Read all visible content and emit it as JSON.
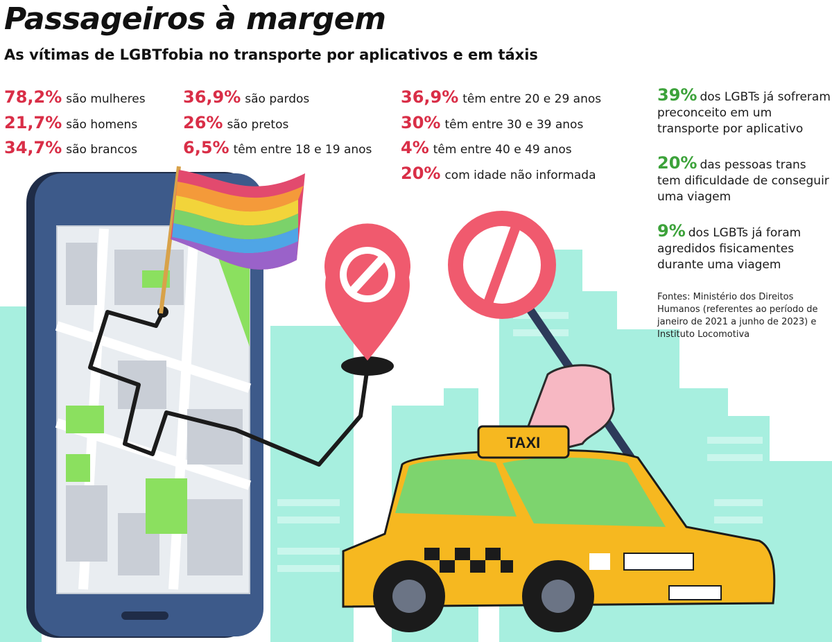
{
  "header": {
    "title": "Passageiros à margem",
    "subtitle": "As vítimas de LGBTfobia no transporte por aplicativos e em táxis"
  },
  "stats": {
    "col1": [
      {
        "pct": "78,2%",
        "text": "são mulheres"
      },
      {
        "pct": "21,7%",
        "text": "são homens"
      },
      {
        "pct": "34,7%",
        "text": "são brancos"
      }
    ],
    "col2": [
      {
        "pct": "36,9%",
        "text": "são pardos"
      },
      {
        "pct": "26%",
        "text": "são pretos"
      },
      {
        "pct": "6,5%",
        "text": "têm entre 18 e 19 anos"
      }
    ],
    "col3": [
      {
        "pct": "36,9%",
        "text": "têm entre 20 e 29 anos"
      },
      {
        "pct": "30%",
        "text": "têm entre 30 e 39 anos"
      },
      {
        "pct": "4%",
        "text": "têm entre 40 e 49 anos"
      },
      {
        "pct": "20%",
        "text": "com idade não informada"
      }
    ]
  },
  "highlights": [
    {
      "pct": "39%",
      "text": "dos LGBTs já sofreram preconceito em um transporte por aplicativo"
    },
    {
      "pct": "20%",
      "text": "das pessoas trans tem dificuldade de conseguir uma viagem"
    },
    {
      "pct": "9%",
      "text": "dos LGBTs já foram agredidos fisicamentes durante uma viagem"
    }
  ],
  "source": "Fontes: Ministério dos Direitos Humanos (referentes ao período de janeiro de 2021 a junho de 2023) e Instituto Locomotiva",
  "taxi_sign": "TAXI",
  "icons": [
    "smartphone-map-icon",
    "rainbow-flag-icon",
    "prohibited-pin-icon",
    "prohibited-sign-icon",
    "taxi-icon",
    "hand-icon"
  ],
  "colors": {
    "accent_red": "#d92e47",
    "accent_green": "#3ca23a",
    "city_mint": "#a7efdf",
    "taxi_yellow": "#f6b820",
    "sign_red": "#f05a6e"
  }
}
